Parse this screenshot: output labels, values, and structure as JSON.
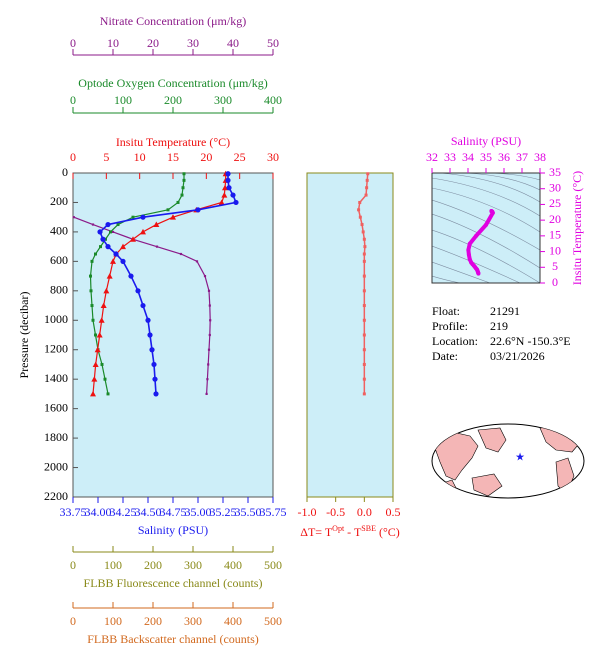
{
  "chart_data": [
    {
      "type": "profile",
      "ylabel": "Pressure (decibar)",
      "ylim": [
        0,
        2200
      ],
      "yticks": [
        0,
        200,
        400,
        600,
        800,
        1000,
        1200,
        1400,
        1600,
        1800,
        2000,
        2200
      ],
      "background": "#cdeef8",
      "top_axes": [
        {
          "label": "Nitrate Concentration (μm/kg)",
          "color": "#8b1a89",
          "marker": "square-small",
          "xlim": [
            0,
            50
          ],
          "xticks": [
            0,
            10,
            20,
            30,
            40,
            50
          ],
          "pressure": [
            300,
            350,
            400,
            450,
            500,
            550,
            600,
            700,
            800,
            900,
            1000,
            1100,
            1200,
            1300,
            1400,
            1500
          ],
          "values": [
            0.2,
            5,
            10,
            15,
            21,
            27,
            31,
            33,
            34,
            34.2,
            34.3,
            34.2,
            34,
            33.8,
            33.6,
            33.4
          ]
        },
        {
          "label": "Optode Oxygen Concentration (μm/kg)",
          "color": "#1a8a2a",
          "marker": "square",
          "xlim": [
            0,
            400
          ],
          "xticks": [
            0,
            100,
            200,
            300,
            400
          ],
          "pressure": [
            5,
            50,
            100,
            150,
            200,
            250,
            300,
            350,
            400,
            450,
            500,
            550,
            600,
            700,
            800,
            900,
            1000,
            1100,
            1200,
            1300,
            1400,
            1500
          ],
          "values": [
            222,
            222,
            220,
            218,
            210,
            190,
            120,
            90,
            75,
            65,
            55,
            45,
            38,
            35,
            36,
            38,
            40,
            45,
            50,
            58,
            64,
            70
          ]
        },
        {
          "label": "Insitu Temperature (°C)",
          "color": "#ee1111",
          "marker": "triangle",
          "xlim": [
            0,
            30
          ],
          "xticks": [
            0,
            5,
            10,
            15,
            20,
            25,
            30
          ],
          "pressure": [
            5,
            50,
            100,
            150,
            200,
            250,
            300,
            350,
            400,
            450,
            500,
            550,
            600,
            700,
            800,
            900,
            1000,
            1100,
            1200,
            1300,
            1400,
            1500
          ],
          "values": [
            22.9,
            22.9,
            22.8,
            22.7,
            22.3,
            18.5,
            15,
            12.5,
            10.5,
            9,
            7.5,
            6.5,
            6,
            5.5,
            5,
            4.6,
            4.3,
            4,
            3.7,
            3.4,
            3.2,
            3.0
          ]
        }
      ],
      "bottom_axes": [
        {
          "label": "Salinity (PSU)",
          "color": "#1a1aee",
          "marker": "circle",
          "xlim": [
            33.75,
            35.75
          ],
          "xticks": [
            33.75,
            {
              "value": 34,
              "label": "34.00"
            },
            34.25,
            {
              "value": 34.5,
              "label": "34.50"
            },
            34.75,
            {
              "value": 35,
              "label": "35.00"
            },
            35.25,
            {
              "value": 35.5,
              "label": "35.50"
            },
            35.75
          ],
          "pressure": [
            5,
            50,
            100,
            150,
            200,
            250,
            300,
            350,
            400,
            450,
            500,
            550,
            600,
            700,
            800,
            900,
            1000,
            1100,
            1200,
            1300,
            1400,
            1500
          ],
          "values": [
            35.3,
            35.3,
            35.31,
            35.35,
            35.38,
            35.0,
            34.45,
            34.1,
            34.02,
            34.05,
            34.1,
            34.18,
            34.25,
            34.33,
            34.4,
            34.45,
            34.5,
            34.52,
            34.54,
            34.56,
            34.57,
            34.58
          ]
        },
        {
          "label": "FLBB Fluorescence channel (counts)",
          "color": "#8a8a1a",
          "xlim": [
            0,
            500
          ],
          "xticks": [
            0,
            100,
            200,
            300,
            400,
            500
          ]
        },
        {
          "label": "FLBB Backscatter channel (counts)",
          "color": "#d2691e",
          "xlim": [
            0,
            500
          ],
          "xticks": [
            0,
            100,
            200,
            300,
            400,
            500
          ]
        }
      ]
    },
    {
      "type": "delta",
      "color": "#f06060",
      "label_color": "#ee1111",
      "xlabel": [
        "ΔT= T",
        "Opt",
        " - T",
        "SBE",
        " (°C)"
      ],
      "xlim": [
        -1,
        0.5
      ],
      "xticks": [
        {
          "value": -1,
          "label": "-1.0"
        },
        -0.5,
        {
          "value": 0,
          "label": "0.0"
        },
        0.5
      ],
      "ylim": [
        0,
        2200
      ],
      "pressure": [
        5,
        50,
        100,
        150,
        200,
        250,
        300,
        350,
        400,
        450,
        500,
        550,
        600,
        700,
        800,
        900,
        1000,
        1100,
        1200,
        1300,
        1400,
        1500
      ],
      "values": [
        0.06,
        0.05,
        0.04,
        0.03,
        -0.08,
        -0.1,
        -0.07,
        -0.04,
        -0.02,
        0.0,
        0.01,
        0.0,
        0.0,
        0.0,
        0.0,
        0.0,
        0.0,
        0.0,
        0.0,
        0.0,
        0.0,
        0.0
      ]
    },
    {
      "type": "ts",
      "color": "#e000e0",
      "title": "Salinity (PSU)",
      "ylabel": "Insitu Temperature (°C)",
      "xlim": [
        32,
        38
      ],
      "xticks": [
        32,
        33,
        34,
        35,
        36,
        37,
        38
      ],
      "ylim": [
        0,
        35
      ],
      "yticks": [
        0,
        5,
        10,
        15,
        20,
        25,
        30,
        35
      ],
      "x": [
        35.3,
        35.3,
        35.31,
        35.35,
        35.38,
        35.0,
        34.45,
        34.1,
        34.02,
        34.05,
        34.1,
        34.18,
        34.25,
        34.33,
        34.4,
        34.45,
        34.5,
        34.52,
        34.54,
        34.56,
        34.57,
        34.58
      ],
      "y": [
        22.9,
        22.9,
        22.8,
        22.7,
        22.3,
        18.5,
        15,
        12.5,
        10.5,
        9,
        7.5,
        6.5,
        6,
        5.5,
        5,
        4.6,
        4.3,
        4,
        3.7,
        3.4,
        3.2,
        3.0
      ]
    }
  ],
  "info": [
    {
      "label": "Float:",
      "value": "21291"
    },
    {
      "label": "Profile:",
      "value": "219"
    },
    {
      "label": "Location:",
      "value": "22.6°N  -150.3°E"
    },
    {
      "label": "Date:",
      "value": "03/21/2026"
    }
  ]
}
